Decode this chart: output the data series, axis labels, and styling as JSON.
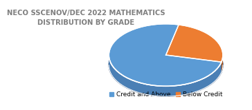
{
  "title": "NECO SSCENOV/DEC 2022 MATHEMATICS\nDISTRIBUTION BY GRADE",
  "slices": [
    75,
    25
  ],
  "labels": [
    "Credit and Above",
    "Below Credit"
  ],
  "colors": [
    "#5B9BD5",
    "#ED7D31"
  ],
  "depth_color_dark": "#1B3F6E",
  "depth_color_light": "#4A7FB5",
  "startangle": 77,
  "background_color": "#ffffff",
  "title_fontsize": 7.2,
  "legend_fontsize": 6.5,
  "title_color": "#7F7F7F"
}
